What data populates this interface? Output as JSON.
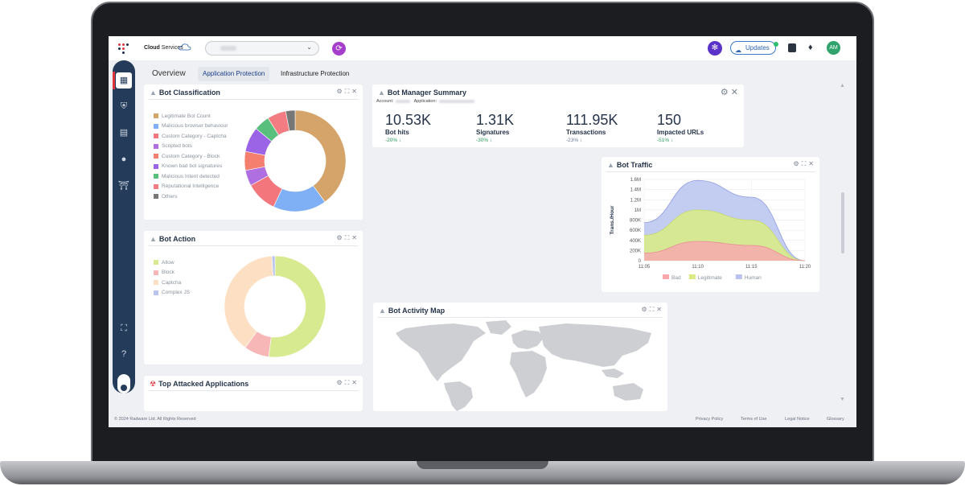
{
  "header": {
    "brand": {
      "name_bold": "Cloud",
      "name_rest": " Services"
    },
    "updates_label": "Updates",
    "avatar_initials": "AM"
  },
  "tabs": [
    {
      "label": "Overview"
    },
    {
      "label": "Application Protection"
    },
    {
      "label": "Infrastructure Protection"
    }
  ],
  "bot_classification": {
    "title": "Bot Classification",
    "legend": [
      {
        "label": "Legitimate Bot Count",
        "color": "#d4a46a"
      },
      {
        "label": "Malicious browser behaviour",
        "color": "#7fb0f5"
      },
      {
        "label": "Custom Category - Captcha",
        "color": "#f2767b"
      },
      {
        "label": "Scripted bots",
        "color": "#b06fe0"
      },
      {
        "label": "Custom Category - Block",
        "color": "#f57f6e"
      },
      {
        "label": "Known bad bot signatures",
        "color": "#9b63e6"
      },
      {
        "label": "Malicious Intent detected",
        "color": "#59bf7d"
      },
      {
        "label": "Reputational Intelligence",
        "color": "#f37c83"
      },
      {
        "label": "Others",
        "color": "#777777"
      }
    ]
  },
  "bot_action": {
    "title": "Bot Action",
    "legend": [
      {
        "label": "Allow",
        "color": "#d8ea8f"
      },
      {
        "label": "Block",
        "color": "#f7b7b7"
      },
      {
        "label": "Captcha",
        "color": "#fde0c3"
      },
      {
        "label": "Complex JS",
        "color": "#b9c5ef"
      }
    ]
  },
  "top_attacked": {
    "title": "Top Attacked Applications"
  },
  "summary": {
    "title": "Bot Manager Summary",
    "account_label": "Account:",
    "application_label": "Application:",
    "kpis": [
      {
        "value": "10.53K",
        "label": "Bot hits",
        "delta": "-20% ↓"
      },
      {
        "value": "1.31K",
        "label": "Signatures",
        "delta": "-30% ↓"
      },
      {
        "value": "111.95K",
        "label": "Transactions",
        "delta": "-23% ↓"
      },
      {
        "value": "150",
        "label": "Impacted URLs",
        "delta": "-51% ↓"
      }
    ]
  },
  "bot_traffic": {
    "title": "Bot Traffic"
  },
  "activity_map": {
    "title": "Bot Activity Map"
  },
  "footer": {
    "copyright": "© 2024 Radware Ltd. All Rights Reserved",
    "links": [
      "Privacy Policy",
      "Terms of Use",
      "Legal Notice",
      "Glossary"
    ]
  },
  "chart_data": [
    {
      "type": "pie",
      "title": "Bot Classification",
      "categories": [
        "Legitimate Bot Count",
        "Malicious browser behaviour",
        "Custom Category - Captcha",
        "Scripted bots",
        "Custom Category - Block",
        "Known bad bot signatures",
        "Malicious Intent detected",
        "Reputational Intelligence",
        "Others"
      ],
      "values": [
        40,
        17,
        10,
        5,
        6,
        8,
        5,
        6,
        3
      ]
    },
    {
      "type": "pie",
      "title": "Bot Action",
      "categories": [
        "Allow",
        "Block",
        "Captcha",
        "Complex JS"
      ],
      "values": [
        52,
        8,
        39,
        1
      ]
    },
    {
      "type": "area",
      "title": "Bot Traffic",
      "ylabel": "Trans./Hour",
      "x": [
        "11:05",
        "11:10",
        "11:15",
        "11:20"
      ],
      "yticks": [
        "0",
        "200K",
        "400K",
        "600K",
        "800K",
        "1M",
        "1.2M",
        "1.4M",
        "1.6M"
      ],
      "ylim": [
        0,
        1600000
      ],
      "legend_position": "bottom",
      "series": [
        {
          "name": "Bad",
          "color": "#f7a9ae",
          "values": [
            150000,
            380000,
            300000,
            0
          ]
        },
        {
          "name": "Legitimate",
          "color": "#d9ec84",
          "values": [
            500000,
            1000000,
            800000,
            0
          ]
        },
        {
          "name": "Human",
          "color": "#b9c3ef",
          "values": [
            750000,
            1580000,
            1250000,
            0
          ]
        }
      ]
    }
  ]
}
